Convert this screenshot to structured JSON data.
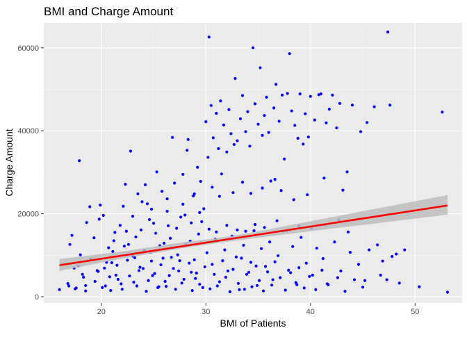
{
  "chart_data": {
    "type": "scatter",
    "title": "BMI and Charge Amount",
    "xlabel": "BMI of Patients",
    "ylabel": "Charge Amount",
    "xlim": [
      14.5,
      54.5
    ],
    "ylim": [
      -1500,
      66000
    ],
    "xticks": [
      20,
      30,
      40,
      50
    ],
    "xtick_labels": [
      "20",
      "30",
      "40",
      "50"
    ],
    "yticks": [
      0,
      20000,
      40000,
      60000
    ],
    "ytick_labels": [
      "0",
      "20000",
      "40000",
      "60000"
    ],
    "grid": true,
    "legend": "none",
    "point_color": "#0000ff",
    "trend": {
      "type": "linear",
      "color": "#ff0000",
      "band_color": "#bdbdbd",
      "start": {
        "x": 16.0,
        "y": 7600
      },
      "end": {
        "x": 53.1,
        "y": 22000
      },
      "band": [
        {
          "x": 16.0,
          "lo": 6200,
          "hi": 9100
        },
        {
          "x": 22.0,
          "lo": 9200,
          "hi": 10900
        },
        {
          "x": 28.0,
          "lo": 11800,
          "hi": 13200
        },
        {
          "x": 30.7,
          "lo": 12800,
          "hi": 14000
        },
        {
          "x": 34.0,
          "lo": 13900,
          "hi": 15300
        },
        {
          "x": 40.0,
          "lo": 15800,
          "hi": 18200
        },
        {
          "x": 46.0,
          "lo": 17600,
          "hi": 21100
        },
        {
          "x": 53.1,
          "lo": 19800,
          "hi": 24500
        }
      ]
    },
    "series": [
      {
        "points": [
          [
            16.0,
            1700
          ],
          [
            16.8,
            3200
          ],
          [
            17.2,
            14800
          ],
          [
            17.4,
            6900
          ],
          [
            17.9,
            32800
          ],
          [
            17.6,
            2100
          ],
          [
            18.0,
            10100
          ],
          [
            18.3,
            4700
          ],
          [
            18.6,
            17900
          ],
          [
            18.9,
            21700
          ],
          [
            18.5,
            1400
          ],
          [
            19.0,
            9100
          ],
          [
            19.3,
            14200
          ],
          [
            19.6,
            6300
          ],
          [
            19.8,
            18700
          ],
          [
            19.9,
            22100
          ],
          [
            20.2,
            19600
          ],
          [
            20.4,
            2600
          ],
          [
            20.7,
            11800
          ],
          [
            21.0,
            8200
          ],
          [
            21.3,
            15500
          ],
          [
            21.6,
            4200
          ],
          [
            21.8,
            17200
          ],
          [
            22.1,
            21800
          ],
          [
            22.3,
            27100
          ],
          [
            22.6,
            12600
          ],
          [
            22.8,
            35100
          ],
          [
            23.0,
            19400
          ],
          [
            23.2,
            9400
          ],
          [
            23.5,
            24800
          ],
          [
            23.8,
            16100
          ],
          [
            24.0,
            6800
          ],
          [
            24.2,
            27000
          ],
          [
            24.4,
            22400
          ],
          [
            24.7,
            10700
          ],
          [
            25.0,
            17700
          ],
          [
            25.3,
            30100
          ],
          [
            25.5,
            2400
          ],
          [
            25.8,
            25400
          ],
          [
            26.0,
            12900
          ],
          [
            26.3,
            20600
          ],
          [
            26.5,
            5100
          ],
          [
            26.8,
            38400
          ],
          [
            27.0,
            27400
          ],
          [
            27.2,
            16500
          ],
          [
            27.5,
            8700
          ],
          [
            27.8,
            29500
          ],
          [
            28.0,
            19700
          ],
          [
            28.2,
            35300
          ],
          [
            28.3,
            37900
          ],
          [
            28.5,
            13400
          ],
          [
            28.8,
            24300
          ],
          [
            29.0,
            4400
          ],
          [
            29.2,
            31200
          ],
          [
            29.5,
            27800
          ],
          [
            29.8,
            21200
          ],
          [
            30.0,
            42200
          ],
          [
            30.2,
            33600
          ],
          [
            30.3,
            62600
          ],
          [
            30.5,
            46100
          ],
          [
            30.7,
            38300
          ],
          [
            31.0,
            44200
          ],
          [
            31.2,
            35700
          ],
          [
            31.4,
            47200
          ],
          [
            31.5,
            29600
          ],
          [
            31.7,
            41400
          ],
          [
            32.0,
            34900
          ],
          [
            32.2,
            45100
          ],
          [
            32.4,
            39300
          ],
          [
            32.7,
            36700
          ],
          [
            32.8,
            52600
          ],
          [
            33.0,
            37600
          ],
          [
            33.3,
            42900
          ],
          [
            33.5,
            48500
          ],
          [
            33.8,
            39800
          ],
          [
            34.0,
            44600
          ],
          [
            34.2,
            36300
          ],
          [
            34.5,
            60000
          ],
          [
            34.7,
            46500
          ],
          [
            35.0,
            41600
          ],
          [
            35.2,
            55200
          ],
          [
            35.4,
            38900
          ],
          [
            35.6,
            43700
          ],
          [
            35.8,
            48100
          ],
          [
            36.0,
            39600
          ],
          [
            36.2,
            27900
          ],
          [
            36.5,
            45500
          ],
          [
            36.7,
            51200
          ],
          [
            37.0,
            42300
          ],
          [
            37.3,
            48600
          ],
          [
            37.5,
            33200
          ],
          [
            37.8,
            49000
          ],
          [
            38.0,
            58600
          ],
          [
            38.2,
            44800
          ],
          [
            38.5,
            41300
          ],
          [
            38.8,
            38200
          ],
          [
            39.0,
            48900
          ],
          [
            39.3,
            36800
          ],
          [
            39.5,
            44100
          ],
          [
            39.8,
            38500
          ],
          [
            40.0,
            48300
          ],
          [
            40.4,
            42600
          ],
          [
            40.8,
            48700
          ],
          [
            41.0,
            48900
          ],
          [
            41.3,
            28600
          ],
          [
            41.5,
            41900
          ],
          [
            41.8,
            45200
          ],
          [
            42.1,
            48600
          ],
          [
            42.5,
            40700
          ],
          [
            42.8,
            46600
          ],
          [
            43.1,
            25700
          ],
          [
            43.5,
            30100
          ],
          [
            44.0,
            46200
          ],
          [
            44.8,
            39800
          ],
          [
            45.4,
            42000
          ],
          [
            46.1,
            45800
          ],
          [
            47.4,
            63800
          ],
          [
            47.6,
            46200
          ],
          [
            52.6,
            44500
          ],
          [
            45.6,
            11300
          ],
          [
            46.4,
            12500
          ],
          [
            49.0,
            11300
          ],
          [
            50.4,
            2400
          ],
          [
            53.1,
            1100
          ],
          [
            47.8,
            9700
          ],
          [
            46.9,
            8600
          ],
          [
            48.2,
            10300
          ],
          [
            44.6,
            7800
          ],
          [
            45.2,
            3900
          ],
          [
            43.8,
            10700
          ],
          [
            42.9,
            6200
          ],
          [
            42.3,
            13200
          ],
          [
            41.2,
            9200
          ],
          [
            41.6,
            3100
          ],
          [
            40.6,
            11700
          ],
          [
            40.2,
            5200
          ],
          [
            39.6,
            8100
          ],
          [
            39.1,
            14300
          ],
          [
            38.7,
            2900
          ],
          [
            38.3,
            12100
          ],
          [
            37.9,
            6400
          ],
          [
            37.4,
            15800
          ],
          [
            36.9,
            9900
          ],
          [
            36.4,
            4100
          ],
          [
            36.1,
            13200
          ],
          [
            35.7,
            7300
          ],
          [
            35.3,
            11600
          ],
          [
            34.9,
            2700
          ],
          [
            34.6,
            15900
          ],
          [
            34.3,
            8300
          ],
          [
            33.9,
            5400
          ],
          [
            33.6,
            12400
          ],
          [
            33.2,
            1700
          ],
          [
            32.9,
            9600
          ],
          [
            32.5,
            14600
          ],
          [
            32.1,
            6200
          ],
          [
            31.8,
            11300
          ],
          [
            31.3,
            3600
          ],
          [
            30.9,
            13900
          ],
          [
            30.6,
            7800
          ],
          [
            30.1,
            10600
          ],
          [
            29.7,
            2200
          ],
          [
            29.3,
            15100
          ],
          [
            28.9,
            8900
          ],
          [
            28.6,
            5900
          ],
          [
            28.1,
            12700
          ],
          [
            27.7,
            3300
          ],
          [
            27.3,
            10100
          ],
          [
            26.9,
            6800
          ],
          [
            26.6,
            14100
          ],
          [
            26.2,
            2500
          ],
          [
            25.9,
            9300
          ],
          [
            25.6,
            12300
          ],
          [
            25.1,
            5600
          ],
          [
            24.8,
            8600
          ],
          [
            24.5,
            3900
          ],
          [
            24.1,
            11200
          ],
          [
            23.7,
            7100
          ],
          [
            23.4,
            2600
          ],
          [
            23.0,
            9800
          ],
          [
            22.7,
            5000
          ],
          [
            22.2,
            12200
          ],
          [
            21.9,
            3100
          ],
          [
            21.5,
            7600
          ],
          [
            21.1,
            10900
          ],
          [
            20.8,
            4800
          ],
          [
            20.5,
            8300
          ],
          [
            20.1,
            2200
          ],
          [
            19.7,
            6100
          ],
          [
            19.4,
            3700
          ],
          [
            18.9,
            8800
          ],
          [
            18.5,
            2700
          ],
          [
            18.2,
            5400
          ],
          [
            17.8,
            7400
          ],
          [
            17.5,
            1900
          ],
          [
            17.0,
            12600
          ],
          [
            16.9,
            2600
          ],
          [
            20.3,
            6900
          ],
          [
            20.9,
            1500
          ],
          [
            21.4,
            5200
          ],
          [
            22.0,
            1800
          ],
          [
            22.5,
            8800
          ],
          [
            23.1,
            3500
          ],
          [
            23.6,
            6300
          ],
          [
            24.3,
            1300
          ],
          [
            24.9,
            5100
          ],
          [
            25.4,
            2200
          ],
          [
            25.7,
            7700
          ],
          [
            26.1,
            3700
          ],
          [
            26.7,
            9500
          ],
          [
            27.1,
            1800
          ],
          [
            27.4,
            6200
          ],
          [
            27.9,
            4200
          ],
          [
            28.4,
            8100
          ],
          [
            28.7,
            1500
          ],
          [
            29.1,
            5700
          ],
          [
            29.4,
            3000
          ],
          [
            29.9,
            7200
          ],
          [
            30.4,
            1900
          ],
          [
            30.8,
            5400
          ],
          [
            31.1,
            2600
          ],
          [
            31.6,
            8700
          ],
          [
            31.9,
            4700
          ],
          [
            32.3,
            1200
          ],
          [
            32.6,
            6600
          ],
          [
            33.1,
            3200
          ],
          [
            33.4,
            9300
          ],
          [
            33.7,
            1800
          ],
          [
            34.1,
            5900
          ],
          [
            34.4,
            2400
          ],
          [
            34.8,
            7400
          ],
          [
            35.1,
            3900
          ],
          [
            35.5,
            1400
          ],
          [
            35.9,
            6000
          ],
          [
            36.3,
            2800
          ],
          [
            36.6,
            8400
          ],
          [
            37.1,
            4600
          ],
          [
            37.6,
            1600
          ],
          [
            38.1,
            5800
          ],
          [
            38.6,
            3400
          ],
          [
            38.9,
            7000
          ],
          [
            39.4,
            2100
          ],
          [
            39.9,
            4900
          ],
          [
            40.5,
            1700
          ],
          [
            41.1,
            6400
          ],
          [
            41.7,
            2900
          ],
          [
            42.6,
            4600
          ],
          [
            43.3,
            1300
          ],
          [
            44.2,
            4100
          ],
          [
            45.0,
            2300
          ],
          [
            46.7,
            5200
          ],
          [
            47.3,
            4100
          ],
          [
            48.5,
            3300
          ],
          [
            21.2,
            13500
          ],
          [
            22.4,
            15800
          ],
          [
            23.3,
            14400
          ],
          [
            24.6,
            18600
          ],
          [
            25.2,
            15300
          ],
          [
            26.4,
            17100
          ],
          [
            27.6,
            19200
          ],
          [
            28.6,
            17800
          ],
          [
            29.6,
            18100
          ],
          [
            30.3,
            16300
          ],
          [
            31.0,
            15600
          ],
          [
            32.0,
            17200
          ],
          [
            33.0,
            16100
          ],
          [
            33.8,
            15800
          ],
          [
            34.7,
            17400
          ],
          [
            35.6,
            16700
          ],
          [
            36.8,
            18300
          ],
          [
            37.7,
            15900
          ],
          [
            38.9,
            17100
          ],
          [
            40.1,
            16500
          ],
          [
            41.4,
            17300
          ],
          [
            42.7,
            18500
          ],
          [
            43.6,
            15600
          ],
          [
            23.9,
            22900
          ],
          [
            24.8,
            21100
          ],
          [
            26.3,
            23600
          ],
          [
            27.8,
            22300
          ],
          [
            28.9,
            24800
          ],
          [
            29.4,
            20300
          ],
          [
            30.6,
            26400
          ],
          [
            31.3,
            24200
          ],
          [
            32.6,
            25100
          ],
          [
            33.5,
            27600
          ],
          [
            34.3,
            24900
          ],
          [
            35.4,
            26200
          ],
          [
            36.6,
            28300
          ],
          [
            37.2,
            25600
          ],
          [
            38.4,
            23400
          ],
          [
            39.7,
            24600
          ]
        ]
      }
    ]
  }
}
